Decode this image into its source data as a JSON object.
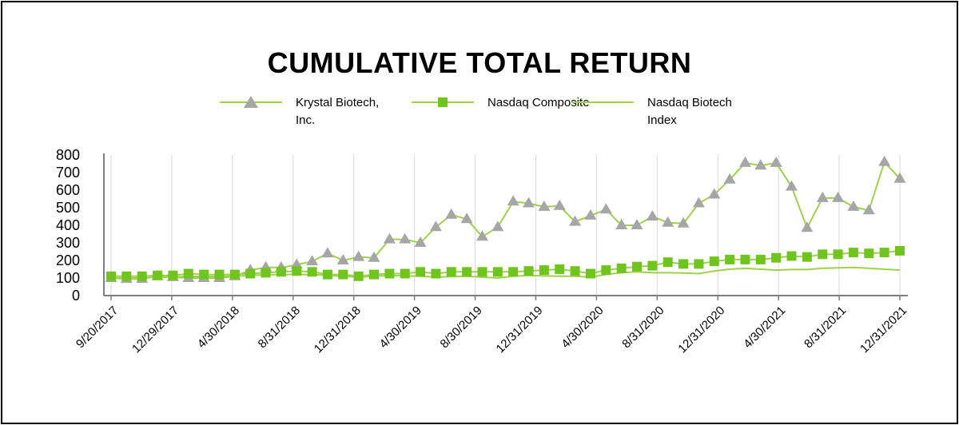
{
  "chart_data": {
    "type": "line",
    "title": "CUMULATIVE TOTAL RETURN",
    "xlabel": "",
    "ylabel": "",
    "ylim": [
      0,
      800
    ],
    "yticks": [
      "800",
      "700",
      "600",
      "500",
      "400",
      "300",
      "200",
      "100",
      "0"
    ],
    "x_tick_labels": [
      "9/20/2017",
      "12/29/2017",
      "4/30/2018",
      "8/31/2018",
      "12/31/2018",
      "4/30/2019",
      "8/30/2019",
      "12/31/2019",
      "4/30/2020",
      "8/31/2020",
      "12/31/2020",
      "4/30/2021",
      "8/31/2021",
      "12/31/2021"
    ],
    "legend_position": "top",
    "series": [
      {
        "name": "Krystal Biotech, Inc.",
        "color": "#9fd14a",
        "marker": "triangle",
        "marker_color": "#a6a6a6",
        "values": [
          100,
          95,
          95,
          110,
          105,
          100,
          100,
          100,
          110,
          145,
          160,
          160,
          175,
          195,
          240,
          200,
          220,
          215,
          320,
          320,
          300,
          390,
          460,
          435,
          335,
          390,
          535,
          525,
          505,
          510,
          420,
          455,
          490,
          400,
          400,
          450,
          415,
          410,
          525,
          575,
          660,
          755,
          740,
          755,
          620,
          385,
          555,
          555,
          505,
          485,
          760,
          665
        ]
      },
      {
        "name": "Nasdaq Composite",
        "color": "#9fd14a",
        "marker": "square",
        "marker_color": "#6fc51e",
        "values": [
          110,
          110,
          110,
          115,
          115,
          125,
          120,
          120,
          120,
          125,
          130,
          135,
          140,
          135,
          120,
          120,
          110,
          120,
          125,
          125,
          135,
          125,
          135,
          135,
          135,
          135,
          135,
          140,
          145,
          150,
          140,
          125,
          145,
          155,
          165,
          170,
          190,
          180,
          180,
          195,
          205,
          205,
          205,
          215,
          225,
          220,
          235,
          235,
          245,
          240,
          245,
          255
        ]
      },
      {
        "name": "Nasdaq Biotech Index",
        "color": "#9fd14a",
        "marker": "none",
        "values": [
          100,
          100,
          100,
          105,
          105,
          110,
          108,
          110,
          110,
          115,
          118,
          120,
          120,
          120,
          115,
          110,
          105,
          110,
          115,
          112,
          110,
          105,
          108,
          110,
          105,
          100,
          110,
          115,
          112,
          110,
          110,
          105,
          120,
          130,
          135,
          130,
          130,
          128,
          125,
          140,
          150,
          155,
          150,
          145,
          148,
          148,
          155,
          158,
          160,
          155,
          150,
          145
        ]
      }
    ]
  }
}
